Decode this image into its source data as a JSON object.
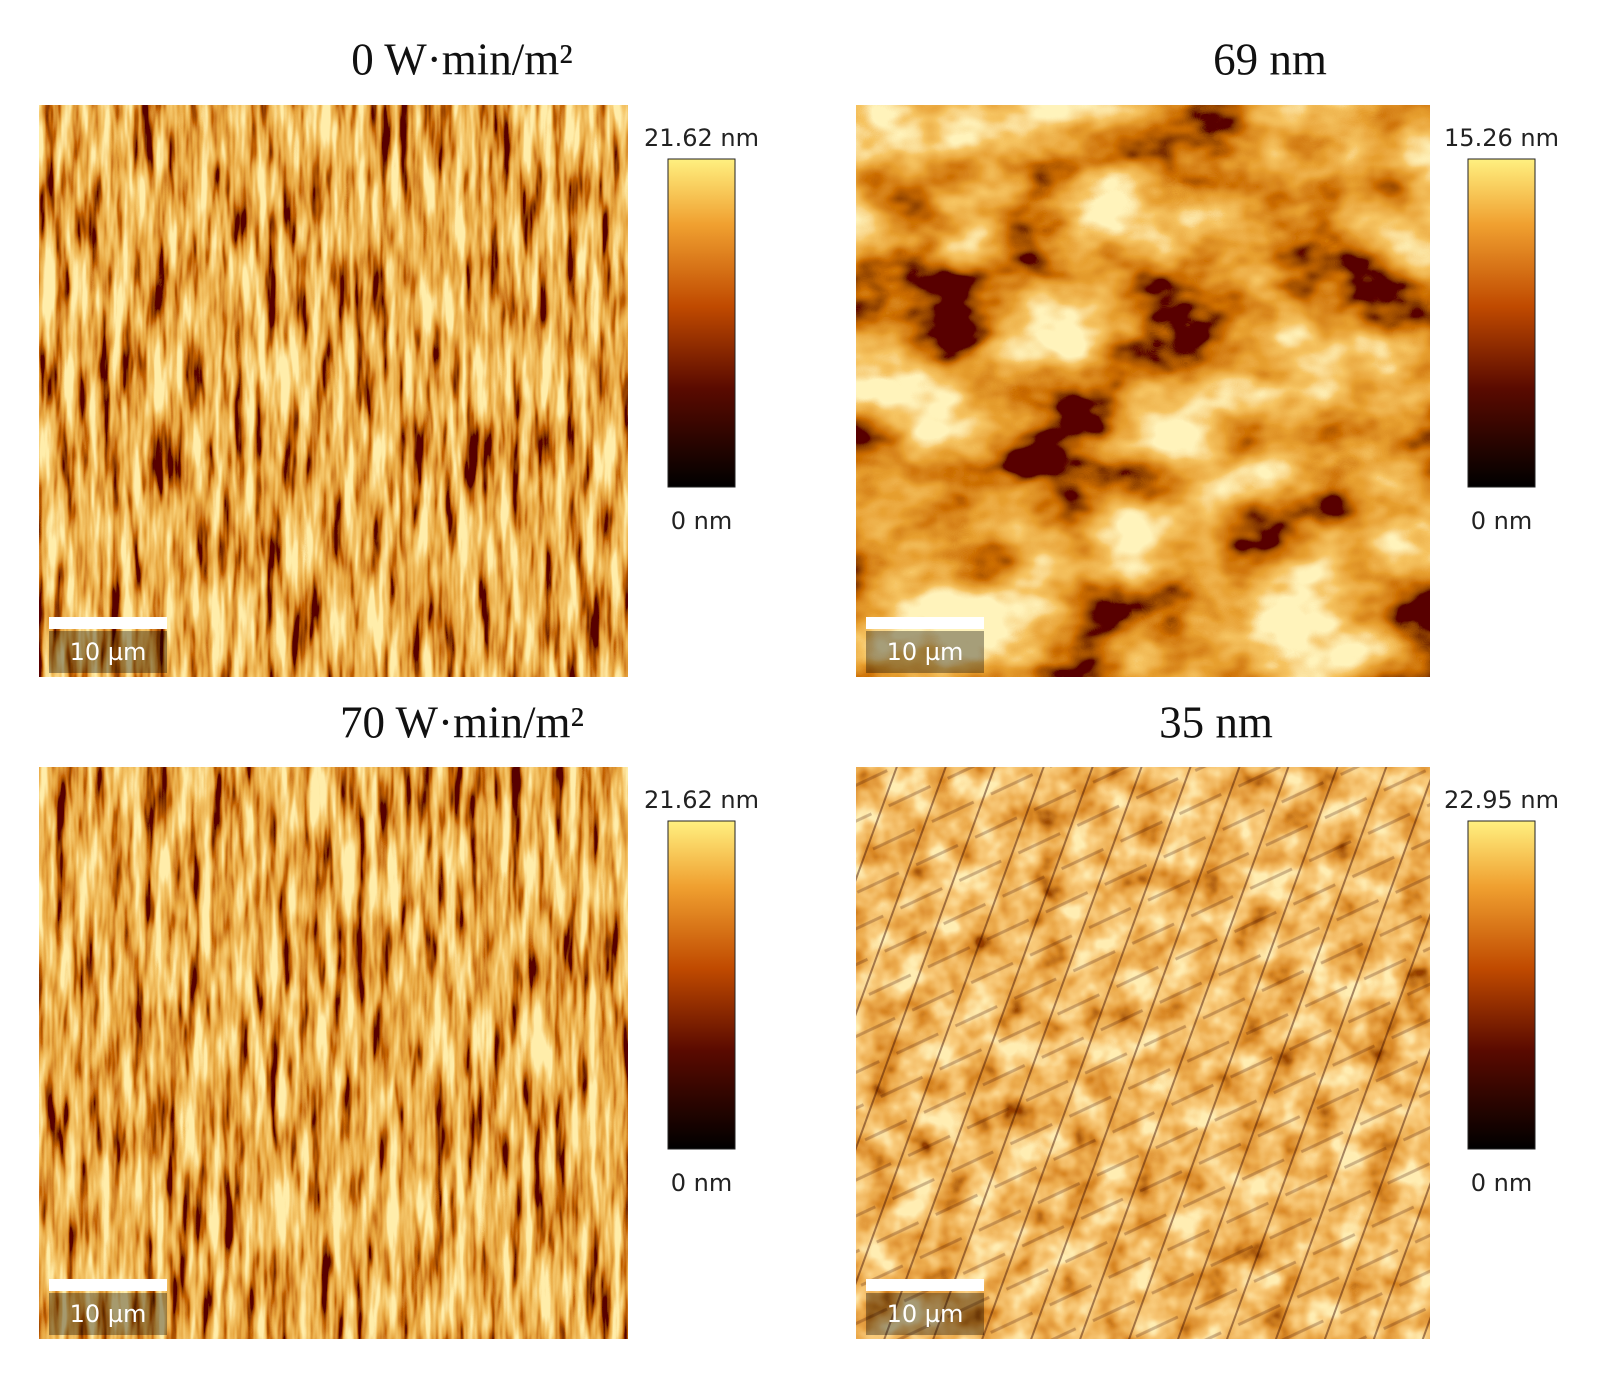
{
  "panels": [
    {
      "title": "0 W·min/m²",
      "colorbar_max": "21.62 nm",
      "colorbar_min": "0 nm",
      "scale_bar": "10 µm"
    },
    {
      "title": "69 nm",
      "colorbar_max": "15.26 nm",
      "colorbar_min": "0 nm",
      "scale_bar": "10 µm"
    },
    {
      "title": "70 W·min/m²",
      "colorbar_max": "21.62 nm",
      "colorbar_min": "0 nm",
      "scale_bar": "10 µm"
    },
    {
      "title": "35 nm",
      "colorbar_max": "22.95 nm",
      "colorbar_min": "0 nm",
      "scale_bar": "10 µm"
    }
  ]
}
